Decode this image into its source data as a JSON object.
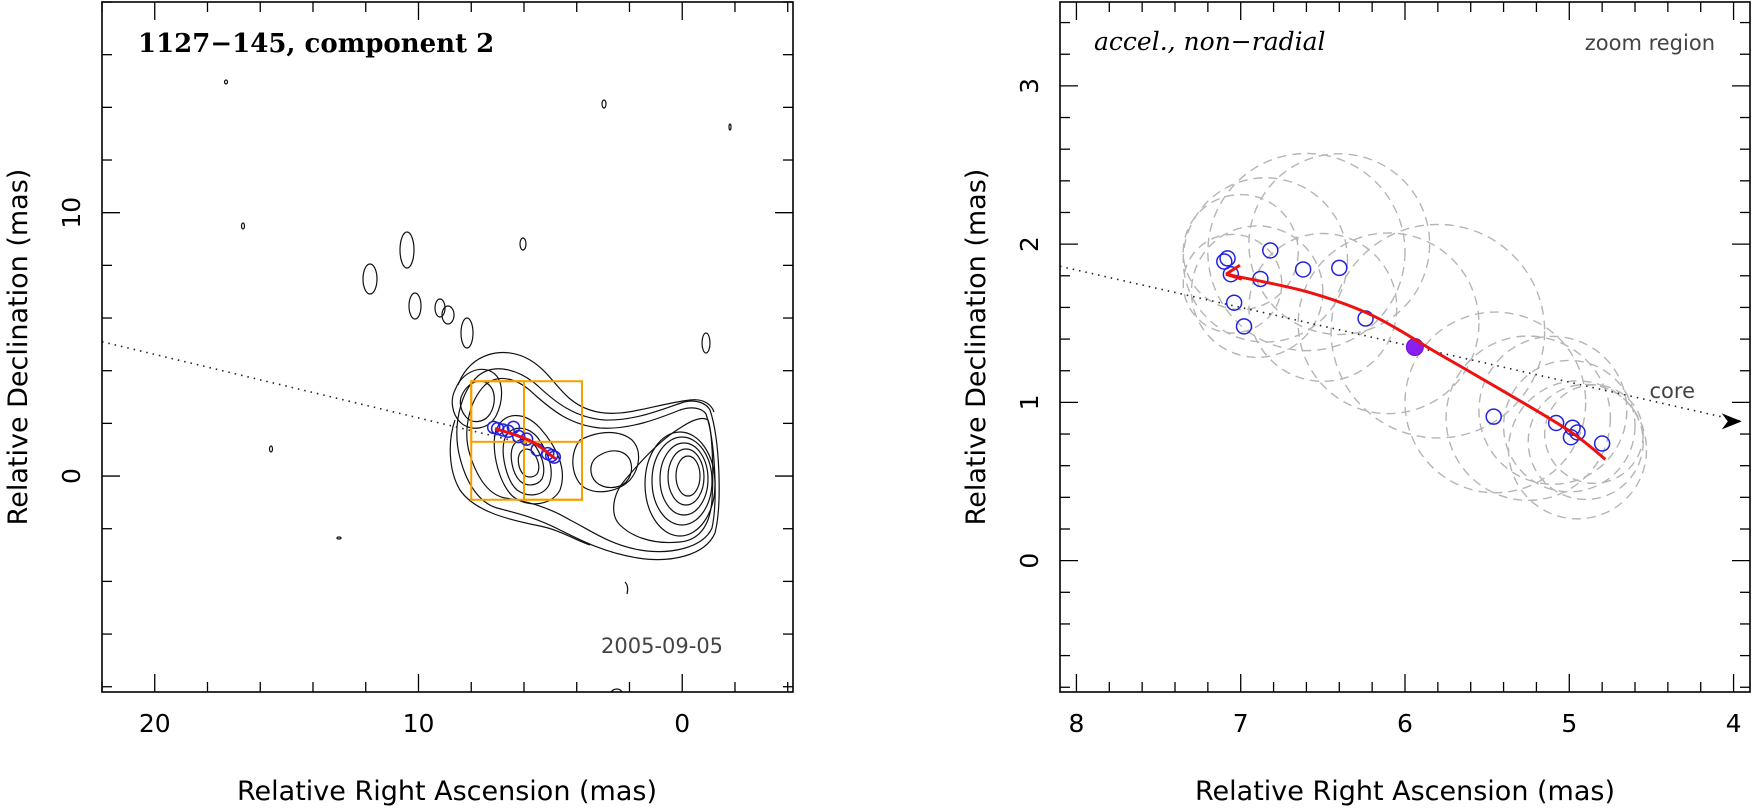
{
  "chart_data": [
    {
      "type": "scatter",
      "panel": "left",
      "title": "1127−145, component 2",
      "date_label": "2005-09-05",
      "xlabel": "Relative Right Ascension (mas)",
      "ylabel": "Relative Declination (mas)",
      "xlim": [
        22,
        -4.2
      ],
      "ylim": [
        -8.2,
        18
      ],
      "xticks": [
        20,
        10,
        0
      ],
      "yticks": [
        10,
        0
      ],
      "y_minor_step": 2,
      "x_minor_step": 2,
      "projection_line": {
        "x": [
          22,
          5
        ],
        "y": [
          5.1,
          1.0
        ]
      },
      "component_positions": {
        "x": [
          7.15,
          7.0,
          6.8,
          6.6,
          6.4,
          6.2,
          5.9,
          5.5,
          5.1,
          4.95,
          4.85
        ],
        "y": [
          1.85,
          1.8,
          1.75,
          1.7,
          1.85,
          1.5,
          1.4,
          1.0,
          0.85,
          0.78,
          0.72
        ]
      },
      "trajectory": {
        "x": [
          7.1,
          6.3,
          5.6,
          4.8
        ],
        "y": [
          1.8,
          1.55,
          1.25,
          0.65
        ]
      },
      "zoom_boxes": [
        {
          "x": [
            8.0,
            3.8
          ],
          "y": [
            -0.9,
            3.6
          ]
        },
        {
          "x": [
            8.0,
            6.0
          ],
          "y": [
            1.3,
            3.6
          ]
        },
        {
          "x": [
            6.0,
            3.8
          ],
          "y": [
            -0.9,
            1.3
          ]
        }
      ]
    },
    {
      "type": "scatter",
      "panel": "right",
      "title": "accel., non−radial",
      "region_label": "zoom region",
      "core_label": "core",
      "xlabel": "Relative Right Ascension (mas)",
      "ylabel": "Relative Declination (mas)",
      "xlim": [
        8.1,
        3.9
      ],
      "ylim": [
        -0.83,
        3.53
      ],
      "xticks": [
        8,
        7,
        6,
        5,
        4
      ],
      "yticks": [
        3,
        2,
        1,
        0
      ],
      "x_minor_step": 0.2,
      "y_minor_step": 0.2,
      "projection_line": {
        "x": [
          8.1,
          3.95
        ],
        "y": [
          1.86,
          0.88
        ]
      },
      "component_positions": {
        "x": [
          7.1,
          7.08,
          7.06,
          7.04,
          6.98,
          6.88,
          6.82,
          6.62,
          6.4,
          6.24,
          5.46,
          5.08,
          4.98,
          4.95,
          4.99,
          4.8
        ],
        "y": [
          1.89,
          1.91,
          1.81,
          1.63,
          1.48,
          1.78,
          1.96,
          1.84,
          1.85,
          1.53,
          0.91,
          0.87,
          0.84,
          0.81,
          0.78,
          0.74
        ]
      },
      "filled_position": {
        "x": 5.94,
        "y": 1.35
      },
      "trajectory": {
        "x": [
          7.09,
          6.6,
          6.2,
          5.8,
          5.4,
          5.0,
          4.78
        ],
        "y": [
          1.81,
          1.7,
          1.55,
          1.31,
          1.07,
          0.82,
          0.64
        ]
      },
      "gaussian_components": [
        {
          "x": 7.0,
          "y": 1.95,
          "r": 0.35
        },
        {
          "x": 6.85,
          "y": 1.9,
          "r": 0.5
        },
        {
          "x": 6.6,
          "y": 1.95,
          "r": 0.6
        },
        {
          "x": 6.4,
          "y": 2.0,
          "r": 0.55
        },
        {
          "x": 6.9,
          "y": 1.7,
          "r": 0.4
        },
        {
          "x": 6.5,
          "y": 1.6,
          "r": 0.45
        },
        {
          "x": 6.1,
          "y": 1.5,
          "r": 0.55
        },
        {
          "x": 5.8,
          "y": 1.45,
          "r": 0.65
        },
        {
          "x": 7.05,
          "y": 1.75,
          "r": 0.3
        },
        {
          "x": 5.0,
          "y": 0.85,
          "r": 0.4
        },
        {
          "x": 4.9,
          "y": 0.75,
          "r": 0.35
        },
        {
          "x": 5.1,
          "y": 0.95,
          "r": 0.45
        },
        {
          "x": 5.25,
          "y": 0.9,
          "r": 0.5
        },
        {
          "x": 4.85,
          "y": 0.8,
          "r": 0.3
        },
        {
          "x": 5.45,
          "y": 1.0,
          "r": 0.55
        },
        {
          "x": 4.95,
          "y": 0.7,
          "r": 0.42
        }
      ]
    }
  ]
}
